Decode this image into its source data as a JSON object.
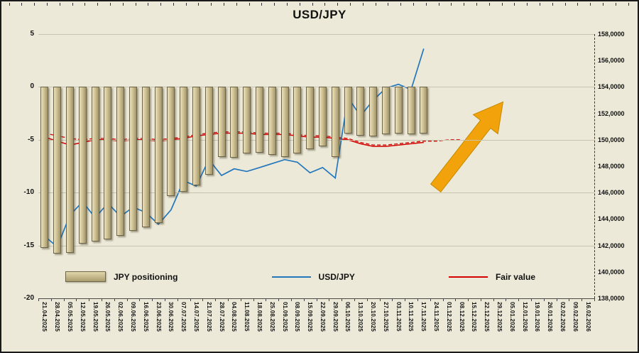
{
  "title": "USD/JPY",
  "colors": {
    "background": "#ECE9D8",
    "grid": "#C7C3B0",
    "bar_fill": "#CFC296",
    "bar_border": "#6E6548",
    "usdjpy_line": "#2277BD",
    "fair_value_line": "#D40000",
    "arrow": "#F2A30B",
    "axis": "#4a4a4a"
  },
  "left_axis": {
    "ticks": [
      5,
      0,
      -5,
      -10,
      -15,
      -20
    ]
  },
  "right_axis": {
    "tick_labels": [
      "158,0000",
      "156,0000",
      "154,0000",
      "152,0000",
      "150,0000",
      "148,0000",
      "146,0000",
      "144,0000",
      "142,0000",
      "140,0000",
      "138,0000"
    ]
  },
  "legend": {
    "items": [
      {
        "label": "JPY positioning",
        "swatch": "bar"
      },
      {
        "label": "USD/JPY",
        "swatch": "line-blue"
      },
      {
        "label": "Fair value",
        "swatch": "line-red"
      }
    ]
  },
  "chart_data": {
    "type": "combo",
    "title": "USD/JPY",
    "grid": true,
    "legend_position": "bottom",
    "categories": [
      "21.04.2025",
      "28.04.2025",
      "05.05.2025",
      "12.05.2025",
      "19.05.2025",
      "26.05.2025",
      "02.06.2025",
      "09.06.2025",
      "16.06.2025",
      "23.06.2025",
      "30.06.2025",
      "07.07.2025",
      "14.07.2025",
      "21.07.2025",
      "28.07.2025",
      "04.08.2025",
      "11.08.2025",
      "18.08.2025",
      "25.08.2025",
      "01.09.2025",
      "08.09.2025",
      "15.09.2025",
      "22.09.2025",
      "29.09.2025",
      "06.10.2025",
      "13.10.2025",
      "20.10.2025",
      "27.10.2025",
      "03.11.2025",
      "10.11.2025",
      "17.11.2025",
      "24.11.2025",
      "01.12.2025",
      "08.12.2025",
      "15.12.2025",
      "22.12.2025",
      "29.12.2025",
      "05.01.2026",
      "12.01.2026",
      "19.01.2026",
      "26.01.2026",
      "02.02.2026",
      "09.02.2026",
      "16.02.2026"
    ],
    "left_axis": {
      "min": -20,
      "max": 5,
      "ticks": [
        5,
        0,
        -5,
        -10,
        -15,
        -20
      ]
    },
    "right_axis": {
      "min": 138,
      "max": 158,
      "tick_step": 2
    },
    "series": [
      {
        "name": "JPY positioning",
        "type": "bar",
        "axis": "left",
        "values": [
          -15.2,
          -15.8,
          -15.7,
          -14.8,
          -14.6,
          -14.4,
          -14.1,
          -13.6,
          -13.3,
          -12.9,
          -10.3,
          -9.9,
          -9.3,
          -8.3,
          -6.6,
          -6.7,
          -6.3,
          -6.2,
          -6.4,
          -6.6,
          -6.3,
          -5.9,
          -5.6,
          -6.6,
          -4.4,
          -4.6,
          -4.7,
          -4.5,
          -4.4,
          -4.5,
          -4.4
        ]
      },
      {
        "name": "USD/JPY",
        "type": "line",
        "axis": "right",
        "color": "#2277BD",
        "values": [
          142.7,
          141.9,
          144.3,
          145.3,
          144.1,
          145.2,
          144.2,
          144.9,
          144.5,
          143.6,
          144.7,
          146.9,
          146.5,
          148.5,
          147.3,
          147.8,
          147.6,
          147.9,
          148.2,
          148.5,
          148.3,
          147.5,
          147.9,
          147.1,
          153.2,
          151.8,
          153.0,
          153.9,
          154.2,
          153.8,
          156.9
        ]
      },
      {
        "name": "Fair value",
        "type": "line",
        "axis": "right",
        "color": "#D40000",
        "values": [
          150.2,
          149.9,
          149.6,
          149.8,
          150.0,
          150.0,
          149.9,
          150.0,
          150.0,
          149.9,
          150.0,
          150.1,
          150.3,
          150.4,
          150.5,
          150.5,
          150.5,
          150.4,
          150.4,
          150.4,
          150.3,
          150.2,
          150.2,
          150.1,
          150.0,
          149.7,
          149.5,
          149.5,
          149.6,
          149.7,
          149.8
        ],
        "forecast_dashed_values": [
          150.5,
          150.3,
          150.1,
          150.0,
          150.1,
          150.1,
          150.0,
          150.1,
          150.1,
          150.0,
          150.1,
          150.2,
          150.4,
          150.5,
          150.6,
          150.6,
          150.6,
          150.5,
          150.5,
          150.5,
          150.4,
          150.3,
          150.3,
          150.2,
          150.1,
          149.8,
          149.6,
          149.6,
          149.7,
          149.8,
          149.9,
          149.9,
          150.0,
          150.0
        ]
      }
    ],
    "annotations": [
      {
        "type": "arrow",
        "direction": "up-right",
        "color": "#F2A30B"
      }
    ]
  }
}
